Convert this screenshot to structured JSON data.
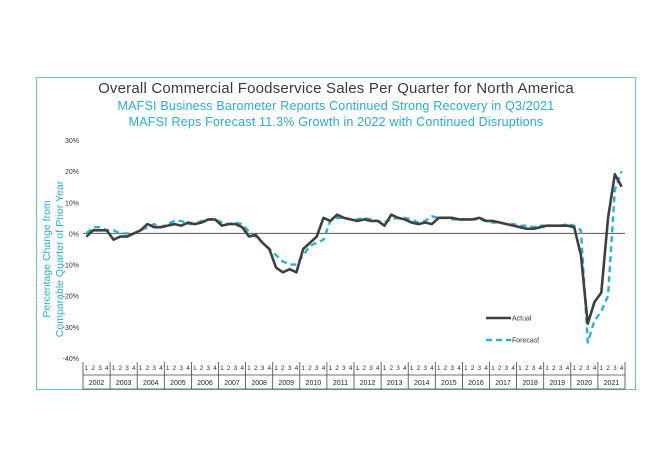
{
  "chart_data": {
    "type": "line",
    "title": "Overall Commercial Foodservice Sales Per Quarter for North America",
    "subtitles": [
      "MAFSI Business Barometer Reports Continued Strong Recovery in Q3/2021",
      "MAFSI Reps Forecast 11.3% Growth in 2022 with Continued Disruptions"
    ],
    "ylabel": "Percentage Change from Comparable Quarter of Prior Year",
    "ylim": [
      -40,
      30
    ],
    "yticks": [
      "30%",
      "20%",
      "10%",
      "0%",
      "-10%",
      "-20%",
      "-30%",
      "-40%"
    ],
    "ytick_values": [
      30,
      20,
      10,
      0,
      -10,
      -20,
      -30,
      -40
    ],
    "years": [
      "2002",
      "2003",
      "2004",
      "2005",
      "2006",
      "2007",
      "2008",
      "2009",
      "2010",
      "2011",
      "2012",
      "2013",
      "2014",
      "2015",
      "2016",
      "2017",
      "2018",
      "2019",
      "2020",
      "2021"
    ],
    "quarter_labels": [
      "1",
      "2",
      "3",
      "4"
    ],
    "legend_position": "lower-right",
    "colors": {
      "actual": "#404040",
      "forecast": "#2bb3cc",
      "frame": "#5cc4d6",
      "axis": "#404040"
    },
    "series": [
      {
        "name": "Actual",
        "style": "solid",
        "values": [
          -1,
          1,
          1,
          1,
          -2,
          -1,
          -1,
          0,
          1,
          3,
          2,
          2,
          2.5,
          3,
          2.5,
          3.5,
          3,
          3.5,
          4.5,
          4.5,
          2.5,
          3,
          3,
          2,
          -1,
          -0.5,
          -3,
          -5,
          -11,
          -12.5,
          -11.5,
          -12.5,
          -5,
          -3,
          -1,
          5,
          4,
          6,
          5,
          4.5,
          4,
          4.5,
          4,
          4,
          2.5,
          6,
          5,
          4.5,
          3.5,
          3,
          3.5,
          3,
          5,
          5,
          5,
          4.5,
          4.5,
          4.5,
          5,
          4,
          4,
          3.5,
          3,
          2.5,
          2,
          1.5,
          1.5,
          2,
          2.5,
          2.5,
          2.5,
          2.5,
          2,
          -7,
          -29,
          -22,
          -19,
          5,
          19,
          15
        ]
      },
      {
        "name": "Forecast",
        "style": "dashed",
        "values": [
          0,
          2,
          2,
          1,
          1,
          0,
          0,
          0,
          1,
          2,
          3,
          2,
          3,
          4,
          4,
          3,
          3,
          4,
          4.5,
          4.5,
          3.5,
          3,
          3.5,
          3,
          0.5,
          -1,
          -3,
          -5,
          -7,
          -9,
          -10,
          -10,
          -7,
          -4,
          -3,
          -2,
          4,
          5,
          5,
          4.5,
          4.5,
          5,
          4.5,
          4,
          3.5,
          4.5,
          5,
          5,
          4.5,
          3.5,
          4,
          5.5,
          5,
          5,
          4.5,
          4.5,
          4.5,
          4.5,
          4.5,
          4,
          3.5,
          3.5,
          3,
          3,
          2.5,
          2.5,
          2,
          2.5,
          2.5,
          2.5,
          2.5,
          3,
          2.5,
          1,
          -35,
          -28,
          -25,
          -20,
          14,
          20
        ]
      }
    ]
  }
}
